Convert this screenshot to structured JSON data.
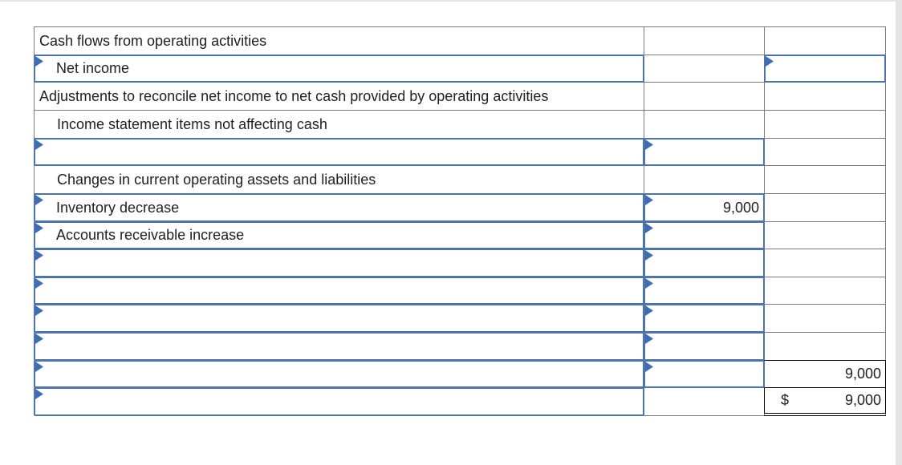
{
  "colors": {
    "background": "#ffffff",
    "grid_line": "#7b7b7b",
    "input_border": "#4d74ad",
    "marker_triangle": "#3f6db4",
    "total_rule": "#000000",
    "text": "#212121",
    "edge_strip": "#e4e4e4"
  },
  "worksheet": {
    "columns": [
      "description",
      "amount",
      "total"
    ],
    "rows": [
      {
        "cells": [
          {
            "kind": "label",
            "text": "Cash flows from operating activities",
            "indent": 0
          },
          {
            "kind": "blank"
          },
          {
            "kind": "blank"
          }
        ]
      },
      {
        "cells": [
          {
            "kind": "input",
            "value": "Net income",
            "indent": 1
          },
          {
            "kind": "blank"
          },
          {
            "kind": "input",
            "value": "",
            "align": "right"
          }
        ]
      },
      {
        "cells": [
          {
            "kind": "label",
            "text": "Adjustments to reconcile net income to net cash provided by operating activities",
            "indent": 0
          },
          {
            "kind": "blank"
          },
          {
            "kind": "blank"
          }
        ]
      },
      {
        "cells": [
          {
            "kind": "label",
            "text": "Income statement items not affecting cash",
            "indent": 1
          },
          {
            "kind": "blank"
          },
          {
            "kind": "blank"
          }
        ]
      },
      {
        "cells": [
          {
            "kind": "input",
            "value": "",
            "indent": 1
          },
          {
            "kind": "input",
            "value": "",
            "align": "right"
          },
          {
            "kind": "blank"
          }
        ]
      },
      {
        "cells": [
          {
            "kind": "label",
            "text": "Changes in current operating assets and liabilities",
            "indent": 1
          },
          {
            "kind": "blank"
          },
          {
            "kind": "blank"
          }
        ]
      },
      {
        "cells": [
          {
            "kind": "input",
            "value": "Inventory decrease",
            "indent": 1
          },
          {
            "kind": "input",
            "value": "9,000",
            "align": "right"
          },
          {
            "kind": "blank"
          }
        ]
      },
      {
        "cells": [
          {
            "kind": "input",
            "value": "Accounts receivable increase",
            "indent": 1
          },
          {
            "kind": "input",
            "value": "",
            "align": "right"
          },
          {
            "kind": "blank"
          }
        ]
      },
      {
        "cells": [
          {
            "kind": "input",
            "value": "",
            "indent": 1
          },
          {
            "kind": "input",
            "value": "",
            "align": "right"
          },
          {
            "kind": "blank"
          }
        ]
      },
      {
        "cells": [
          {
            "kind": "input",
            "value": "",
            "indent": 1
          },
          {
            "kind": "input",
            "value": "",
            "align": "right"
          },
          {
            "kind": "blank"
          }
        ]
      },
      {
        "cells": [
          {
            "kind": "input",
            "value": "",
            "indent": 1
          },
          {
            "kind": "input",
            "value": "",
            "align": "right"
          },
          {
            "kind": "blank"
          }
        ]
      },
      {
        "cells": [
          {
            "kind": "input",
            "value": "",
            "indent": 1
          },
          {
            "kind": "input",
            "value": "",
            "align": "right"
          },
          {
            "kind": "blank"
          }
        ]
      },
      {
        "cells": [
          {
            "kind": "input",
            "value": "",
            "indent": 1
          },
          {
            "kind": "input",
            "value": "",
            "align": "right"
          },
          {
            "kind": "subtotal",
            "value": "9,000"
          }
        ]
      },
      {
        "cells": [
          {
            "kind": "input",
            "value": "",
            "indent": 1
          },
          {
            "kind": "blank"
          },
          {
            "kind": "total",
            "currency": "$",
            "value": "9,000"
          }
        ]
      }
    ]
  }
}
